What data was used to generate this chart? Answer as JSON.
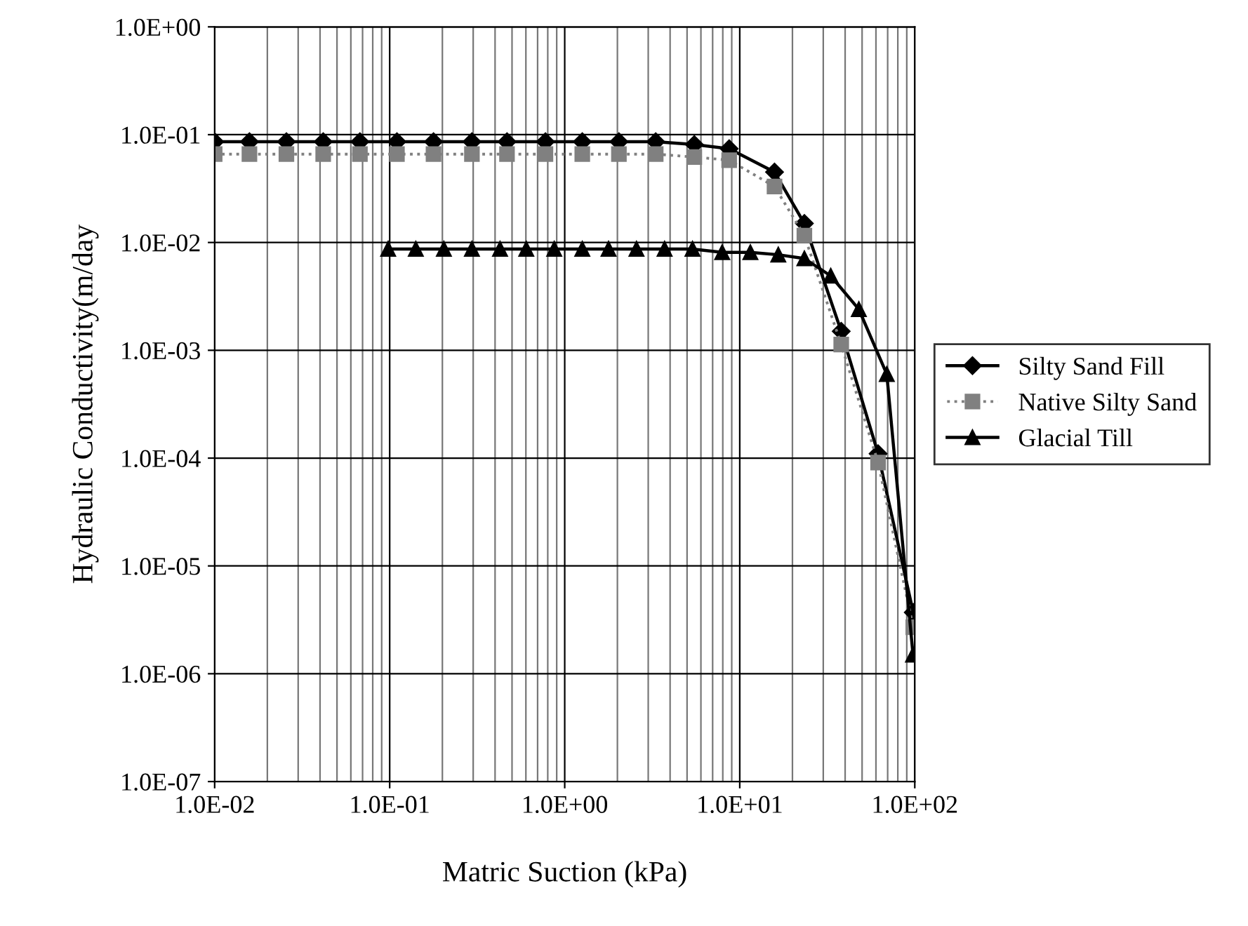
{
  "chart_data": {
    "type": "line",
    "xlabel": "Matric Suction (kPa)",
    "ylabel": "Hydraulic Conductivity(m/day",
    "log": "xy",
    "grid": true,
    "legend": "right",
    "xlim": [
      0.01,
      100
    ],
    "ylim": [
      1e-07,
      1
    ],
    "xticks": [
      {
        "value": 0.01,
        "label": "1.0E-02"
      },
      {
        "value": 0.1,
        "label": "1.0E-01"
      },
      {
        "value": 1,
        "label": "1.0E+00"
      },
      {
        "value": 10,
        "label": "1.0E+01"
      },
      {
        "value": 100,
        "label": "1.0E+02"
      }
    ],
    "yticks": [
      {
        "value": 1e-07,
        "label": "1.0E-07"
      },
      {
        "value": 1e-06,
        "label": "1.0E-06"
      },
      {
        "value": 1e-05,
        "label": "1.0E-05"
      },
      {
        "value": 0.0001,
        "label": "1.0E-04"
      },
      {
        "value": 0.001,
        "label": "1.0E-03"
      },
      {
        "value": 0.01,
        "label": "1.0E-02"
      },
      {
        "value": 0.1,
        "label": "1.0E-01"
      },
      {
        "value": 1,
        "label": "1.0E+00"
      }
    ],
    "series": [
      {
        "name": "Silty Sand Fill",
        "color": "#000000",
        "marker": "diamond",
        "line_style": "solid",
        "x": [
          0.01,
          0.0158,
          0.0257,
          0.0417,
          0.0676,
          0.11,
          0.178,
          0.295,
          0.468,
          0.776,
          1.26,
          2.04,
          3.31,
          5.5,
          8.7,
          15.8,
          23.4,
          38,
          61.7,
          98
        ],
        "values": [
          0.086,
          0.086,
          0.086,
          0.086,
          0.086,
          0.086,
          0.086,
          0.086,
          0.086,
          0.086,
          0.086,
          0.086,
          0.086,
          0.081,
          0.074,
          0.045,
          0.015,
          0.0015,
          0.00011,
          3.7e-06
        ]
      },
      {
        "name": "Native Silty Sand",
        "color": "#808080",
        "marker": "square",
        "line_style": "dotted",
        "x": [
          0.01,
          0.0158,
          0.0257,
          0.0417,
          0.0676,
          0.11,
          0.178,
          0.295,
          0.468,
          0.776,
          1.26,
          2.04,
          3.31,
          5.5,
          8.7,
          15.8,
          23.4,
          38,
          61.7,
          98
        ],
        "values": [
          0.066,
          0.066,
          0.066,
          0.066,
          0.066,
          0.066,
          0.066,
          0.066,
          0.066,
          0.066,
          0.066,
          0.066,
          0.066,
          0.062,
          0.058,
          0.033,
          0.0116,
          0.00113,
          9.1e-05,
          2.7e-06
        ]
      },
      {
        "name": "Glacial Till",
        "color": "#000000",
        "marker": "triangle",
        "line_style": "solid",
        "x": [
          0.098,
          0.141,
          0.204,
          0.295,
          0.427,
          0.603,
          0.871,
          1.26,
          1.78,
          2.57,
          3.72,
          5.37,
          7.94,
          11.5,
          16.6,
          23.4,
          33.1,
          47.9,
          69.2,
          97.7
        ],
        "values": [
          0.0087,
          0.0087,
          0.0087,
          0.0087,
          0.0087,
          0.0087,
          0.0087,
          0.0087,
          0.0087,
          0.0087,
          0.0087,
          0.0087,
          0.0081,
          0.0081,
          0.0077,
          0.0071,
          0.0049,
          0.0024,
          0.0006,
          1.5e-06
        ]
      }
    ]
  }
}
